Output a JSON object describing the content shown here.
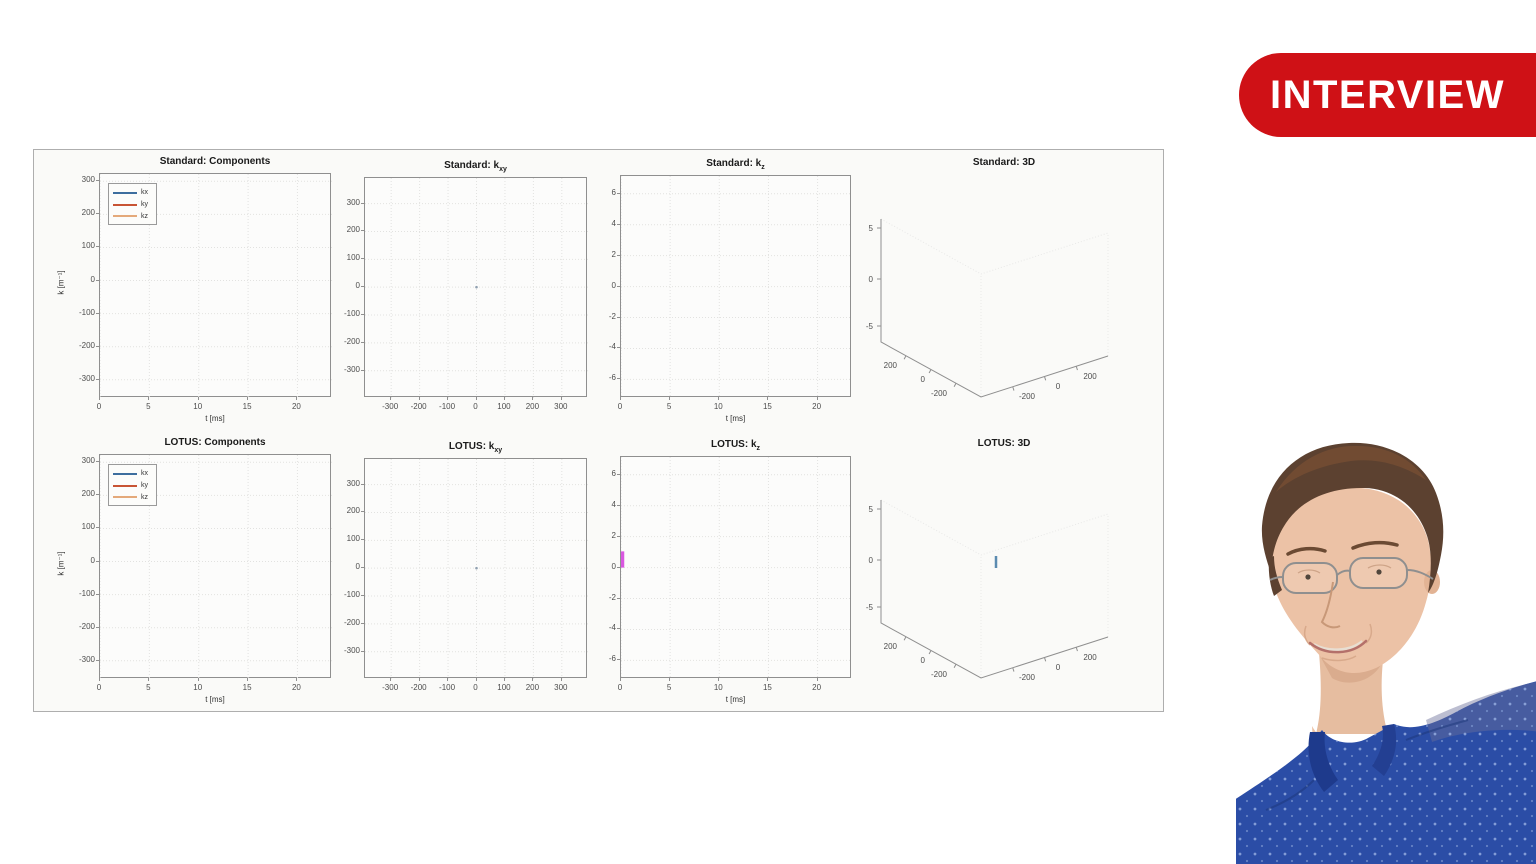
{
  "badge": {
    "label": "INTERVIEW"
  },
  "colors": {
    "badge_bg": "#cf1116",
    "badge_text": "#ffffff",
    "figure_bg": "#fafaf8",
    "figure_border": "#aeaeae",
    "axes_bg": "#fcfcfb",
    "axis_line": "#8f8f8f",
    "grid_line": "#e2e2e0",
    "tick_text": "#4d4d4d",
    "title_text": "#1a1a1a",
    "series_kx": "#3d6e9e",
    "series_ky": "#c85434",
    "series_kz": "#e4a97a",
    "kz_pulse_magenta": "#d957e0",
    "origin_mark_blue": "#5b8bb0",
    "kxy_dot_gray": "#90a0b0"
  },
  "chart_data": [
    {
      "id": "standard-components",
      "type": "line",
      "title": "Standard: Components",
      "title_sub": "",
      "xlabel": "t [ms]",
      "ylabel": "k [m⁻¹]",
      "xlim": [
        0,
        23.5
      ],
      "ylim": [
        -355,
        322
      ],
      "xticks": [
        0,
        5,
        10,
        15,
        20
      ],
      "yticks": [
        300,
        200,
        100,
        0,
        -100,
        -200,
        -300
      ],
      "grid": true,
      "legend": [
        {
          "label": "kx",
          "color_key": "series_kx"
        },
        {
          "label": "ky",
          "color_key": "series_ky"
        },
        {
          "label": "kz",
          "color_key": "series_kz"
        }
      ],
      "series": []
    },
    {
      "id": "standard-kxy",
      "type": "scatter",
      "title": "Standard: k",
      "title_sub": "xy",
      "xlabel": "",
      "ylabel": "",
      "xlim": [
        -392,
        392
      ],
      "ylim": [
        -398,
        392
      ],
      "xticks": [
        -300,
        -200,
        -100,
        0,
        100,
        200,
        300
      ],
      "yticks": [
        300,
        200,
        100,
        0,
        -100,
        -200,
        -300
      ],
      "grid": true,
      "series": [
        {
          "name": "k-space-trajectory",
          "style": "dot",
          "color_key": "kxy_dot_gray",
          "points": [
            [
              0,
              0
            ]
          ]
        }
      ]
    },
    {
      "id": "standard-kz",
      "type": "line",
      "title": "Standard: k",
      "title_sub": "z",
      "xlabel": "t [ms]",
      "ylabel": "",
      "xlim": [
        0,
        23.5
      ],
      "ylim": [
        -7.2,
        7.15
      ],
      "xticks": [
        0,
        5,
        10,
        15,
        20
      ],
      "yticks": [
        6,
        4,
        2,
        0,
        -2,
        -4,
        -6
      ],
      "grid": true,
      "series": []
    },
    {
      "id": "standard-3d",
      "type": "scatter3",
      "title": "Standard: 3D",
      "title_sub": "",
      "zticks": [
        5,
        0,
        -5
      ],
      "xticks": [
        200,
        0,
        -200
      ],
      "yticks": [
        -200,
        0,
        200
      ],
      "series": []
    },
    {
      "id": "lotus-components",
      "type": "line",
      "title": "LOTUS: Components",
      "title_sub": "",
      "xlabel": "t [ms]",
      "ylabel": "k [m⁻¹]",
      "xlim": [
        0,
        23.5
      ],
      "ylim": [
        -355,
        322
      ],
      "xticks": [
        0,
        5,
        10,
        15,
        20
      ],
      "yticks": [
        300,
        200,
        100,
        0,
        -100,
        -200,
        -300
      ],
      "grid": true,
      "legend": [
        {
          "label": "kx",
          "color_key": "series_kx"
        },
        {
          "label": "ky",
          "color_key": "series_ky"
        },
        {
          "label": "kz",
          "color_key": "series_kz"
        }
      ],
      "series": []
    },
    {
      "id": "lotus-kxy",
      "type": "scatter",
      "title": "LOTUS: k",
      "title_sub": "xy",
      "xlabel": "",
      "ylabel": "",
      "xlim": [
        -392,
        392
      ],
      "ylim": [
        -398,
        392
      ],
      "xticks": [
        -300,
        -200,
        -100,
        0,
        100,
        200,
        300
      ],
      "yticks": [
        300,
        200,
        100,
        0,
        -100,
        -200,
        -300
      ],
      "grid": true,
      "series": [
        {
          "name": "k-space-trajectory",
          "style": "dot",
          "color_key": "kxy_dot_gray",
          "points": [
            [
              0,
              0
            ]
          ]
        }
      ]
    },
    {
      "id": "lotus-kz",
      "type": "line",
      "title": "LOTUS: k",
      "title_sub": "z",
      "xlabel": "t [ms]",
      "ylabel": "",
      "xlim": [
        0,
        23.5
      ],
      "ylim": [
        -7.2,
        7.15
      ],
      "xticks": [
        0,
        5,
        10,
        15,
        20
      ],
      "yticks": [
        6,
        4,
        2,
        0,
        -2,
        -4,
        -6
      ],
      "grid": true,
      "series": [
        {
          "name": "kz-pulse",
          "style": "vsegment",
          "color_key": "kz_pulse_magenta",
          "points": [
            [
              0,
              0
            ],
            [
              0,
              1.05
            ]
          ]
        }
      ]
    },
    {
      "id": "lotus-3d",
      "type": "scatter3",
      "title": "LOTUS: 3D",
      "title_sub": "",
      "zticks": [
        5,
        0,
        -5
      ],
      "xticks": [
        200,
        0,
        -200
      ],
      "yticks": [
        -200,
        0,
        200
      ],
      "series": [
        {
          "name": "origin-mark",
          "style": "vtick",
          "color_key": "origin_mark_blue",
          "points": [
            [
              0,
              0,
              0
            ]
          ]
        }
      ]
    }
  ],
  "portrait": {
    "alt": "Smiling man with short brown hair and rimless glasses wearing a dark blue dotted shirt"
  }
}
